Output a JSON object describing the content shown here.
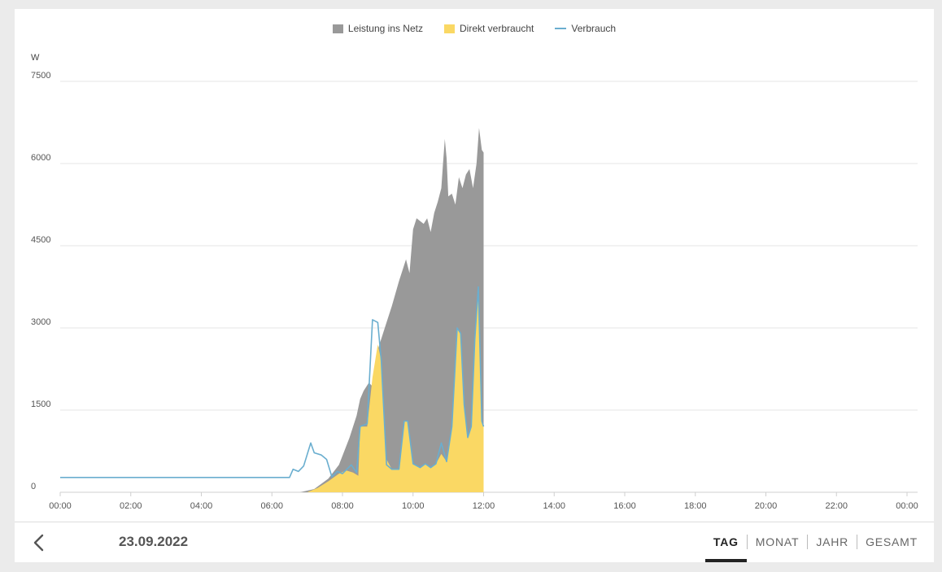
{
  "legend": {
    "grid_feed": "Leistung ins Netz",
    "direct": "Direkt verbraucht",
    "consumption": "Verbrauch"
  },
  "colors": {
    "grid_feed": "#999999",
    "direct": "#fad864",
    "consumption": "#6aaecf"
  },
  "date": "23.09.2022",
  "tabs": [
    {
      "label": "TAG",
      "active": true
    },
    {
      "label": "MONAT",
      "active": false
    },
    {
      "label": "JAHR",
      "active": false
    },
    {
      "label": "GESAMT",
      "active": false
    }
  ],
  "chart_data": {
    "type": "area",
    "ylabel": "W",
    "ylim": [
      0,
      7500
    ],
    "yticks": [
      "0",
      "1500",
      "3000",
      "4500",
      "6000",
      "7500"
    ],
    "xticks": [
      "00:00",
      "02:00",
      "04:00",
      "06:00",
      "08:00",
      "10:00",
      "12:00",
      "14:00",
      "16:00",
      "18:00",
      "20:00",
      "22:00",
      "00:00"
    ],
    "xlim_hours": [
      0,
      24
    ],
    "grid": true,
    "legend_position": "top-center",
    "series": [
      {
        "name": "Leistung ins Netz",
        "kind": "area",
        "points": [
          [
            6.8,
            0
          ],
          [
            7.2,
            60
          ],
          [
            7.6,
            250
          ],
          [
            7.9,
            500
          ],
          [
            8.2,
            1000
          ],
          [
            8.4,
            1400
          ],
          [
            8.5,
            1700
          ],
          [
            8.6,
            1850
          ],
          [
            8.75,
            2000
          ],
          [
            8.9,
            1900
          ],
          [
            9.0,
            2600
          ],
          [
            9.2,
            3000
          ],
          [
            9.4,
            3400
          ],
          [
            9.6,
            3850
          ],
          [
            9.8,
            4250
          ],
          [
            9.9,
            4000
          ],
          [
            10.0,
            4800
          ],
          [
            10.1,
            5000
          ],
          [
            10.3,
            4900
          ],
          [
            10.4,
            5000
          ],
          [
            10.5,
            4750
          ],
          [
            10.6,
            5100
          ],
          [
            10.7,
            5300
          ],
          [
            10.8,
            5550
          ],
          [
            10.85,
            6000
          ],
          [
            10.9,
            6450
          ],
          [
            10.95,
            6100
          ],
          [
            11.0,
            5400
          ],
          [
            11.1,
            5450
          ],
          [
            11.2,
            5250
          ],
          [
            11.3,
            5750
          ],
          [
            11.4,
            5550
          ],
          [
            11.5,
            5800
          ],
          [
            11.6,
            5900
          ],
          [
            11.7,
            5550
          ],
          [
            11.8,
            6000
          ],
          [
            11.87,
            6650
          ],
          [
            11.95,
            6250
          ],
          [
            12.0,
            6200
          ],
          [
            12.0,
            0
          ]
        ]
      },
      {
        "name": "Direkt verbraucht",
        "kind": "area",
        "points": [
          [
            7.0,
            0
          ],
          [
            7.3,
            80
          ],
          [
            7.6,
            200
          ],
          [
            7.9,
            340
          ],
          [
            8.1,
            400
          ],
          [
            8.3,
            360
          ],
          [
            8.45,
            300
          ],
          [
            8.5,
            1200
          ],
          [
            8.7,
            1200
          ],
          [
            8.85,
            2100
          ],
          [
            9.0,
            2700
          ],
          [
            9.1,
            2400
          ],
          [
            9.25,
            600
          ],
          [
            9.4,
            420
          ],
          [
            9.6,
            420
          ],
          [
            9.75,
            1300
          ],
          [
            9.85,
            1300
          ],
          [
            10.0,
            520
          ],
          [
            10.2,
            450
          ],
          [
            10.35,
            520
          ],
          [
            10.5,
            450
          ],
          [
            10.65,
            520
          ],
          [
            10.8,
            700
          ],
          [
            10.95,
            560
          ],
          [
            11.1,
            1200
          ],
          [
            11.25,
            3000
          ],
          [
            11.35,
            2900
          ],
          [
            11.45,
            1600
          ],
          [
            11.55,
            1000
          ],
          [
            11.65,
            1200
          ],
          [
            11.75,
            2800
          ],
          [
            11.85,
            3700
          ],
          [
            11.95,
            1300
          ],
          [
            12.0,
            1200
          ],
          [
            12.0,
            0
          ]
        ]
      },
      {
        "name": "Verbrauch",
        "kind": "line",
        "points": [
          [
            0.0,
            270
          ],
          [
            6.5,
            270
          ],
          [
            6.6,
            420
          ],
          [
            6.75,
            380
          ],
          [
            6.9,
            480
          ],
          [
            7.1,
            900
          ],
          [
            7.2,
            720
          ],
          [
            7.4,
            680
          ],
          [
            7.55,
            600
          ],
          [
            7.7,
            280
          ],
          [
            7.85,
            380
          ],
          [
            8.0,
            340
          ],
          [
            8.25,
            500
          ],
          [
            8.4,
            360
          ],
          [
            8.5,
            1200
          ],
          [
            8.7,
            1250
          ],
          [
            8.85,
            3150
          ],
          [
            9.0,
            3100
          ],
          [
            9.1,
            2400
          ],
          [
            9.25,
            500
          ],
          [
            9.4,
            420
          ],
          [
            9.6,
            420
          ],
          [
            9.75,
            1300
          ],
          [
            9.85,
            1300
          ],
          [
            10.0,
            520
          ],
          [
            10.2,
            450
          ],
          [
            10.35,
            520
          ],
          [
            10.5,
            450
          ],
          [
            10.65,
            520
          ],
          [
            10.8,
            900
          ],
          [
            10.95,
            560
          ],
          [
            11.1,
            1200
          ],
          [
            11.25,
            3000
          ],
          [
            11.35,
            2900
          ],
          [
            11.45,
            1600
          ],
          [
            11.55,
            1000
          ],
          [
            11.65,
            1200
          ],
          [
            11.75,
            2800
          ],
          [
            11.85,
            3750
          ],
          [
            11.95,
            1300
          ],
          [
            12.0,
            1200
          ]
        ]
      }
    ]
  }
}
